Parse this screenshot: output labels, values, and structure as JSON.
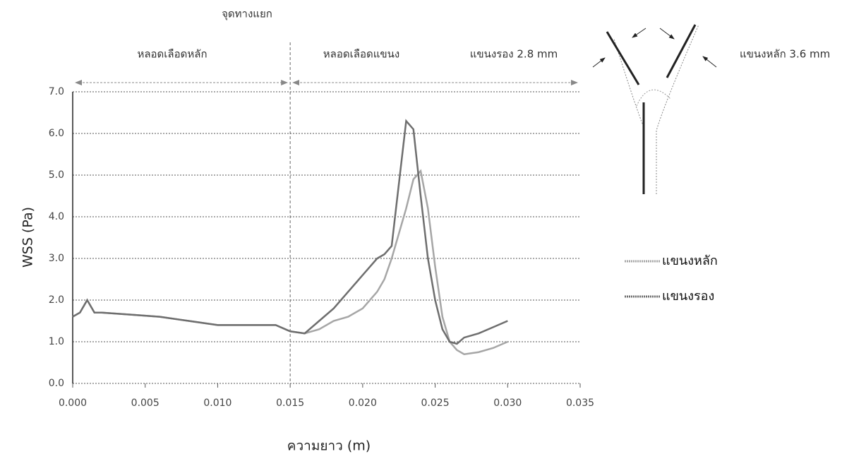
{
  "chart_data": {
    "type": "line",
    "xlabel": "ความยาว (m)",
    "ylabel": "WSS (Pa)",
    "x": [
      0,
      0.0005,
      0.001,
      0.0015,
      0.002,
      0.004,
      0.006,
      0.008,
      0.01,
      0.012,
      0.014,
      0.015,
      0.016,
      0.017,
      0.018,
      0.019,
      0.02,
      0.021,
      0.0215,
      0.022,
      0.0225,
      0.023,
      0.0235,
      0.024,
      0.0245,
      0.025,
      0.0255,
      0.026,
      0.0265,
      0.027,
      0.028,
      0.029,
      0.03
    ],
    "series": [
      {
        "name": "แขนงหลัก",
        "color": "#a6a6a6",
        "values": [
          1.6,
          1.7,
          2.0,
          1.7,
          1.7,
          1.65,
          1.6,
          1.5,
          1.4,
          1.4,
          1.4,
          1.25,
          1.2,
          1.3,
          1.5,
          1.6,
          1.8,
          2.2,
          2.5,
          3.0,
          3.6,
          4.2,
          4.9,
          5.1,
          4.2,
          2.8,
          1.6,
          1.0,
          0.8,
          0.7,
          0.75,
          0.85,
          1.0
        ]
      },
      {
        "name": "แขนงรอง",
        "color": "#6e6e6e",
        "values": [
          1.6,
          1.7,
          2.0,
          1.7,
          1.7,
          1.65,
          1.6,
          1.5,
          1.4,
          1.4,
          1.4,
          1.25,
          1.2,
          1.5,
          1.8,
          2.2,
          2.6,
          3.0,
          3.1,
          3.3,
          4.8,
          6.3,
          6.1,
          4.5,
          3.0,
          2.0,
          1.3,
          1.0,
          0.95,
          1.1,
          1.2,
          1.35,
          1.5
        ]
      }
    ],
    "xlim": [
      0,
      0.035
    ],
    "ylim": [
      0,
      7
    ],
    "xticks": [
      {
        "value": 0,
        "label": "0.000"
      },
      {
        "value": 0.005,
        "label": "0.005"
      },
      {
        "value": 0.01,
        "label": "0.010"
      },
      {
        "value": 0.015,
        "label": "0.015"
      },
      {
        "value": 0.02,
        "label": "0.020"
      },
      {
        "value": 0.025,
        "label": "0.025"
      },
      {
        "value": 0.03,
        "label": "0.030"
      },
      {
        "value": 0.035,
        "label": "0.035"
      }
    ],
    "yticks": [
      {
        "value": 0,
        "label": "0.0"
      },
      {
        "value": 1,
        "label": "1.0"
      },
      {
        "value": 2,
        "label": "2.0"
      },
      {
        "value": 3,
        "label": "3.0"
      },
      {
        "value": 4,
        "label": "4.0"
      },
      {
        "value": 5,
        "label": "5.0"
      },
      {
        "value": 6,
        "label": "6.0"
      },
      {
        "value": 7,
        "label": "7.0"
      }
    ],
    "grid": true,
    "junction_x": 0.015,
    "annotations": {
      "junction": "จุดทางแยก",
      "main_vessel": "หลอดเลือดหลัก",
      "branch_vessel": "หลอดเลือดแขนง",
      "secondary_size": "แขนงรอง 2.8 mm",
      "main_size": "แขนงหลัก 3.6 mm"
    }
  }
}
